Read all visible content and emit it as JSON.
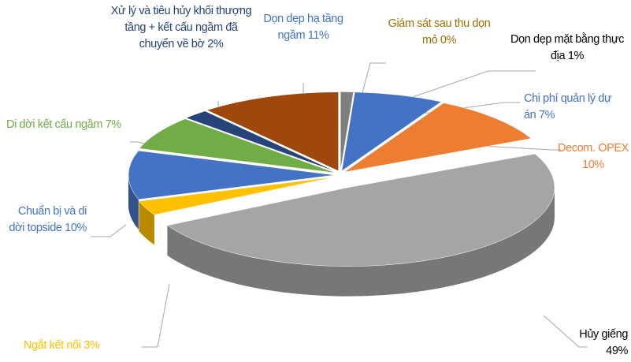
{
  "chart_data": {
    "type": "pie",
    "categories": [
      "Giám sát sau thu dọn mỏ",
      "Dọn dẹp mặt bằng thực địa",
      "Chi phí quản lý dự án",
      "Decom. OPEX",
      "Hủy giếng",
      "Ngắt kết nối",
      "Chuẩn bị và di dời topside",
      "Di dời kết cấu ngầm",
      "Xử lý và tiêu hủy khối thượng tầng + kết cấu ngầm đã chuyển về bờ",
      "Dọn dẹp hạ tầng ngầm"
    ],
    "values": [
      0,
      1,
      7,
      10,
      49,
      3,
      10,
      7,
      2,
      11
    ],
    "value_labels": [
      "0%",
      "1%",
      "7%",
      "10%",
      "49%",
      "3%",
      "10%",
      "7%",
      "2%",
      "11%"
    ],
    "colors": [
      "#c9a227",
      "#7f7f7f",
      "#4472c4",
      "#ed7d31",
      "#a5a5a5",
      "#ffc000",
      "#4472c4",
      "#70ad47",
      "#264478",
      "#9e480e"
    ]
  }
}
